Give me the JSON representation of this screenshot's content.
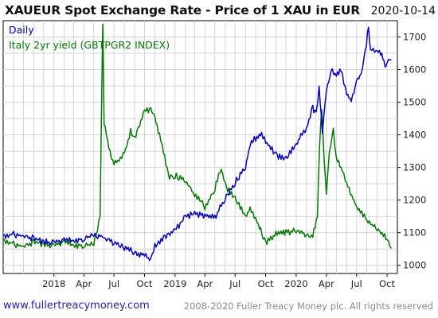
{
  "header": {
    "title": "XAUEUR Spot Exchange Rate - Price of 1 XAU in EUR",
    "date": "2020-10-14"
  },
  "footer": {
    "url": "www.fullertreacymoney.com",
    "copyright": "2008-2020 Fuller Treacy Money plc. All rights reserved"
  },
  "colors": {
    "primary_series": "#0000c8",
    "secondary_series": "#007a00",
    "grid": "#d4d4d4",
    "url_text": "#1f1fb8"
  },
  "chart_data": {
    "type": "line",
    "title": "XAUEUR Spot Exchange Rate - Price of 1 XAU in EUR",
    "frequency_label": "Daily",
    "grid": true,
    "legend_position": "top-left",
    "x_axis": {
      "range": [
        "2017-08-01",
        "2020-11-01"
      ],
      "tick_labels": [
        "2018",
        "Apr",
        "Jul",
        "Oct",
        "2019",
        "Apr",
        "Jul",
        "Oct",
        "2020",
        "Apr",
        "Jul",
        "Oct"
      ],
      "tick_dates": [
        "2018-01-01",
        "2018-04-01",
        "2018-07-01",
        "2018-10-01",
        "2019-01-01",
        "2019-04-01",
        "2019-07-01",
        "2019-10-01",
        "2020-01-01",
        "2020-04-01",
        "2020-07-01",
        "2020-10-01"
      ]
    },
    "y_axis": {
      "position": "right",
      "range": [
        975,
        1750
      ],
      "ticks": [
        1000,
        1100,
        1200,
        1300,
        1400,
        1500,
        1600,
        1700
      ]
    },
    "series": [
      {
        "name": "",
        "role": "primary",
        "color": "#0000c8",
        "points": [
          [
            "2017-08-01",
            1092
          ],
          [
            "2017-09-01",
            1095
          ],
          [
            "2017-10-01",
            1090
          ],
          [
            "2017-11-01",
            1083
          ],
          [
            "2017-12-01",
            1072
          ],
          [
            "2018-01-01",
            1070
          ],
          [
            "2018-02-01",
            1078
          ],
          [
            "2018-03-01",
            1074
          ],
          [
            "2018-04-01",
            1082
          ],
          [
            "2018-05-01",
            1094
          ],
          [
            "2018-06-01",
            1085
          ],
          [
            "2018-07-01",
            1068
          ],
          [
            "2018-08-01",
            1054
          ],
          [
            "2018-09-01",
            1040
          ],
          [
            "2018-10-01",
            1030
          ],
          [
            "2018-10-20",
            1018
          ],
          [
            "2018-11-01",
            1058
          ],
          [
            "2018-12-01",
            1088
          ],
          [
            "2019-01-01",
            1105
          ],
          [
            "2019-02-01",
            1150
          ],
          [
            "2019-03-01",
            1158
          ],
          [
            "2019-04-01",
            1152
          ],
          [
            "2019-05-01",
            1147
          ],
          [
            "2019-06-01",
            1205
          ],
          [
            "2019-07-01",
            1255
          ],
          [
            "2019-08-01",
            1300
          ],
          [
            "2019-08-15",
            1370
          ],
          [
            "2019-09-01",
            1390
          ],
          [
            "2019-09-15",
            1405
          ],
          [
            "2019-10-01",
            1380
          ],
          [
            "2019-11-01",
            1338
          ],
          [
            "2019-12-01",
            1327
          ],
          [
            "2020-01-01",
            1370
          ],
          [
            "2020-01-15",
            1400
          ],
          [
            "2020-02-01",
            1420
          ],
          [
            "2020-02-20",
            1485
          ],
          [
            "2020-03-01",
            1460
          ],
          [
            "2020-03-10",
            1540
          ],
          [
            "2020-03-20",
            1410
          ],
          [
            "2020-04-01",
            1535
          ],
          [
            "2020-04-15",
            1600
          ],
          [
            "2020-05-01",
            1580
          ],
          [
            "2020-05-15",
            1600
          ],
          [
            "2020-06-01",
            1530
          ],
          [
            "2020-06-15",
            1505
          ],
          [
            "2020-07-01",
            1560
          ],
          [
            "2020-07-15",
            1585
          ],
          [
            "2020-07-27",
            1655
          ],
          [
            "2020-08-06",
            1728
          ],
          [
            "2020-08-12",
            1660
          ],
          [
            "2020-09-01",
            1655
          ],
          [
            "2020-09-15",
            1650
          ],
          [
            "2020-09-25",
            1610
          ],
          [
            "2020-10-01",
            1625
          ],
          [
            "2020-10-14",
            1630
          ]
        ]
      },
      {
        "name": "Italy 2yr yield (GBTPGR2 INDEX)",
        "role": "overlay",
        "color": "#007a00",
        "points": [
          [
            "2017-08-01",
            1080
          ],
          [
            "2017-09-01",
            1065
          ],
          [
            "2017-10-01",
            1058
          ],
          [
            "2017-11-01",
            1072
          ],
          [
            "2017-12-01",
            1065
          ],
          [
            "2018-01-01",
            1060
          ],
          [
            "2018-02-01",
            1072
          ],
          [
            "2018-03-01",
            1060
          ],
          [
            "2018-04-01",
            1062
          ],
          [
            "2018-05-01",
            1065
          ],
          [
            "2018-05-20",
            1150
          ],
          [
            "2018-05-28",
            1740
          ],
          [
            "2018-06-01",
            1440
          ],
          [
            "2018-06-15",
            1360
          ],
          [
            "2018-07-01",
            1310
          ],
          [
            "2018-08-01",
            1340
          ],
          [
            "2018-08-20",
            1410
          ],
          [
            "2018-09-01",
            1390
          ],
          [
            "2018-10-01",
            1470
          ],
          [
            "2018-10-20",
            1480
          ],
          [
            "2018-11-01",
            1450
          ],
          [
            "2018-11-15",
            1400
          ],
          [
            "2018-12-01",
            1330
          ],
          [
            "2018-12-15",
            1270
          ],
          [
            "2019-01-01",
            1275
          ],
          [
            "2019-02-01",
            1260
          ],
          [
            "2019-03-01",
            1215
          ],
          [
            "2019-04-01",
            1180
          ],
          [
            "2019-05-01",
            1235
          ],
          [
            "2019-05-20",
            1300
          ],
          [
            "2019-06-01",
            1245
          ],
          [
            "2019-07-01",
            1205
          ],
          [
            "2019-08-01",
            1150
          ],
          [
            "2019-08-15",
            1175
          ],
          [
            "2019-09-01",
            1145
          ],
          [
            "2019-10-01",
            1070
          ],
          [
            "2019-11-01",
            1095
          ],
          [
            "2019-12-01",
            1100
          ],
          [
            "2020-01-01",
            1105
          ],
          [
            "2020-02-01",
            1095
          ],
          [
            "2020-02-20",
            1090
          ],
          [
            "2020-03-05",
            1150
          ],
          [
            "2020-03-12",
            1380
          ],
          [
            "2020-03-18",
            1485
          ],
          [
            "2020-03-25",
            1330
          ],
          [
            "2020-04-01",
            1210
          ],
          [
            "2020-04-10",
            1345
          ],
          [
            "2020-04-22",
            1415
          ],
          [
            "2020-05-01",
            1330
          ],
          [
            "2020-05-15",
            1300
          ],
          [
            "2020-06-01",
            1250
          ],
          [
            "2020-07-01",
            1180
          ],
          [
            "2020-08-01",
            1140
          ],
          [
            "2020-09-01",
            1110
          ],
          [
            "2020-10-01",
            1085
          ],
          [
            "2020-10-14",
            1052
          ]
        ]
      }
    ]
  }
}
